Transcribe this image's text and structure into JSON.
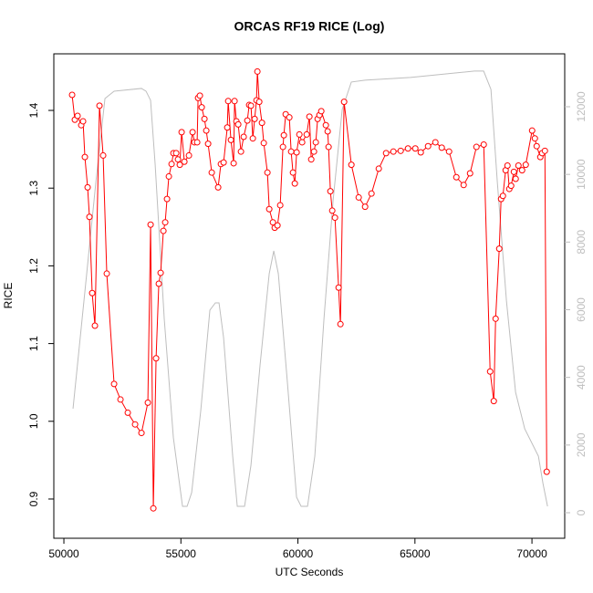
{
  "chart_data": {
    "type": "line",
    "title": "ORCAS RF19 RICE (Log)",
    "x_label": "UTC Seconds",
    "y_label": "RICE",
    "xlim": [
      49570,
      71400
    ],
    "xticks": [
      50000,
      55000,
      60000,
      65000,
      70000
    ],
    "ylim": [
      0.8495,
      1.4728
    ],
    "yticks": [
      0.9,
      {
        "value": 1,
        "label": "1.0"
      },
      1.1,
      1.2,
      1.3,
      1.4
    ],
    "y2lim": [
      -755,
      13564
    ],
    "y2ticks": [
      0,
      2000,
      4000,
      6000,
      8000,
      10000,
      12000
    ],
    "y2_color": "#bebebe",
    "series": [
      {
        "color": "#bebebe",
        "axis": "y2",
        "markers": false,
        "x": [
          50390,
          50975,
          51365,
          51755,
          52144,
          53314,
          53509,
          53704,
          53899,
          54289,
          54679,
          55069,
          55264,
          55459,
          55849,
          56238,
          56472,
          56628,
          56823,
          57213,
          57408,
          57720,
          57993,
          58383,
          58773,
          58968,
          59163,
          59553,
          59942,
          60137,
          60410,
          60722,
          61112,
          61502,
          61892,
          62282,
          62867,
          64816,
          66766,
          67546,
          67936,
          68248,
          68521,
          68911,
          69301,
          69691,
          70081,
          70276,
          70471,
          70666
        ],
        "values": [
          3075,
          7066,
          9763,
          12244,
          12460,
          12541,
          12460,
          12190,
          10303,
          5718,
          2212,
          189,
          189,
          593,
          3021,
          5987,
          6203,
          6203,
          5178,
          1672,
          189,
          189,
          1402,
          4369,
          7066,
          7740,
          7066,
          3830,
          458,
          189,
          189,
          1672,
          5718,
          9224,
          11921,
          12730,
          12784,
          12865,
          13000,
          13054,
          13054,
          12514,
          9763,
          6257,
          3560,
          2481,
          1942,
          1672,
          863,
          189
        ]
      },
      {
        "color": "#ff0000",
        "axis": "y",
        "markers": true,
        "x": [
          50351,
          50468,
          50585,
          50741,
          50819,
          50897,
          51014,
          51092,
          51209,
          51326,
          51521,
          51677,
          51833,
          52145,
          52418,
          52730,
          53042,
          53315,
          53588,
          53705,
          53822,
          53939,
          54056,
          54134,
          54251,
          54329,
          54407,
          54485,
          54602,
          54680,
          54797,
          54875,
          54953,
          55031,
          55148,
          55343,
          55499,
          55577,
          55694,
          55733,
          55811,
          55889,
          56006,
          56084,
          56162,
          56318,
          56591,
          56708,
          56825,
          56981,
          57020,
          57137,
          57254,
          57293,
          57371,
          57449,
          57566,
          57683,
          57839,
          57917,
          57995,
          58073,
          58151,
          58229,
          58268,
          58346,
          58463,
          58541,
          58697,
          58775,
          58931,
          59009,
          59126,
          59243,
          59360,
          59399,
          59477,
          59633,
          59711,
          59789,
          59867,
          59945,
          60062,
          60179,
          60374,
          60491,
          60569,
          60686,
          60764,
          60842,
          60920,
          60998,
          61193,
          61271,
          61310,
          61388,
          61466,
          61583,
          61739,
          61817,
          61973,
          62285,
          62597,
          62870,
          63143,
          63455,
          63767,
          64079,
          64391,
          64703,
          65015,
          65249,
          65561,
          65873,
          66146,
          66458,
          66770,
          67082,
          67355,
          67628,
          67940,
          68213,
          68369,
          68447,
          68603,
          68681,
          68759,
          68876,
          68954,
          69032,
          69110,
          69227,
          69305,
          69422,
          69578,
          69734,
          70007,
          70124,
          70202,
          70358,
          70436,
          70553,
          70631
        ],
        "values": [
          1.42,
          1.388,
          1.393,
          1.381,
          1.386,
          1.34,
          1.301,
          1.263,
          1.165,
          1.123,
          1.406,
          1.342,
          1.19,
          1.048,
          1.028,
          1.011,
          0.996,
          0.985,
          1.024,
          1.253,
          0.888,
          1.081,
          1.177,
          1.191,
          1.245,
          1.256,
          1.286,
          1.315,
          1.331,
          1.345,
          1.345,
          1.337,
          1.33,
          1.372,
          1.334,
          1.342,
          1.372,
          1.359,
          1.359,
          1.416,
          1.419,
          1.404,
          1.389,
          1.374,
          1.357,
          1.32,
          1.301,
          1.331,
          1.333,
          1.378,
          1.412,
          1.362,
          1.332,
          1.412,
          1.386,
          1.382,
          1.347,
          1.366,
          1.387,
          1.407,
          1.406,
          1.364,
          1.389,
          1.413,
          1.45,
          1.411,
          1.384,
          1.358,
          1.32,
          1.273,
          1.256,
          1.249,
          1.252,
          1.278,
          1.353,
          1.368,
          1.395,
          1.391,
          1.347,
          1.32,
          1.306,
          1.346,
          1.369,
          1.359,
          1.369,
          1.392,
          1.337,
          1.347,
          1.359,
          1.389,
          1.394,
          1.399,
          1.381,
          1.373,
          1.353,
          1.296,
          1.271,
          1.262,
          1.172,
          1.125,
          1.411,
          1.33,
          1.288,
          1.276,
          1.293,
          1.325,
          1.345,
          1.347,
          1.348,
          1.351,
          1.351,
          1.346,
          1.354,
          1.359,
          1.352,
          1.347,
          1.314,
          1.304,
          1.319,
          1.353,
          1.356,
          1.064,
          1.026,
          1.132,
          1.222,
          1.286,
          1.29,
          1.323,
          1.329,
          1.299,
          1.303,
          1.321,
          1.312,
          1.329,
          1.323,
          1.33,
          1.374,
          1.364,
          1.354,
          1.34,
          1.345,
          1.348,
          0.935
        ]
      }
    ]
  }
}
